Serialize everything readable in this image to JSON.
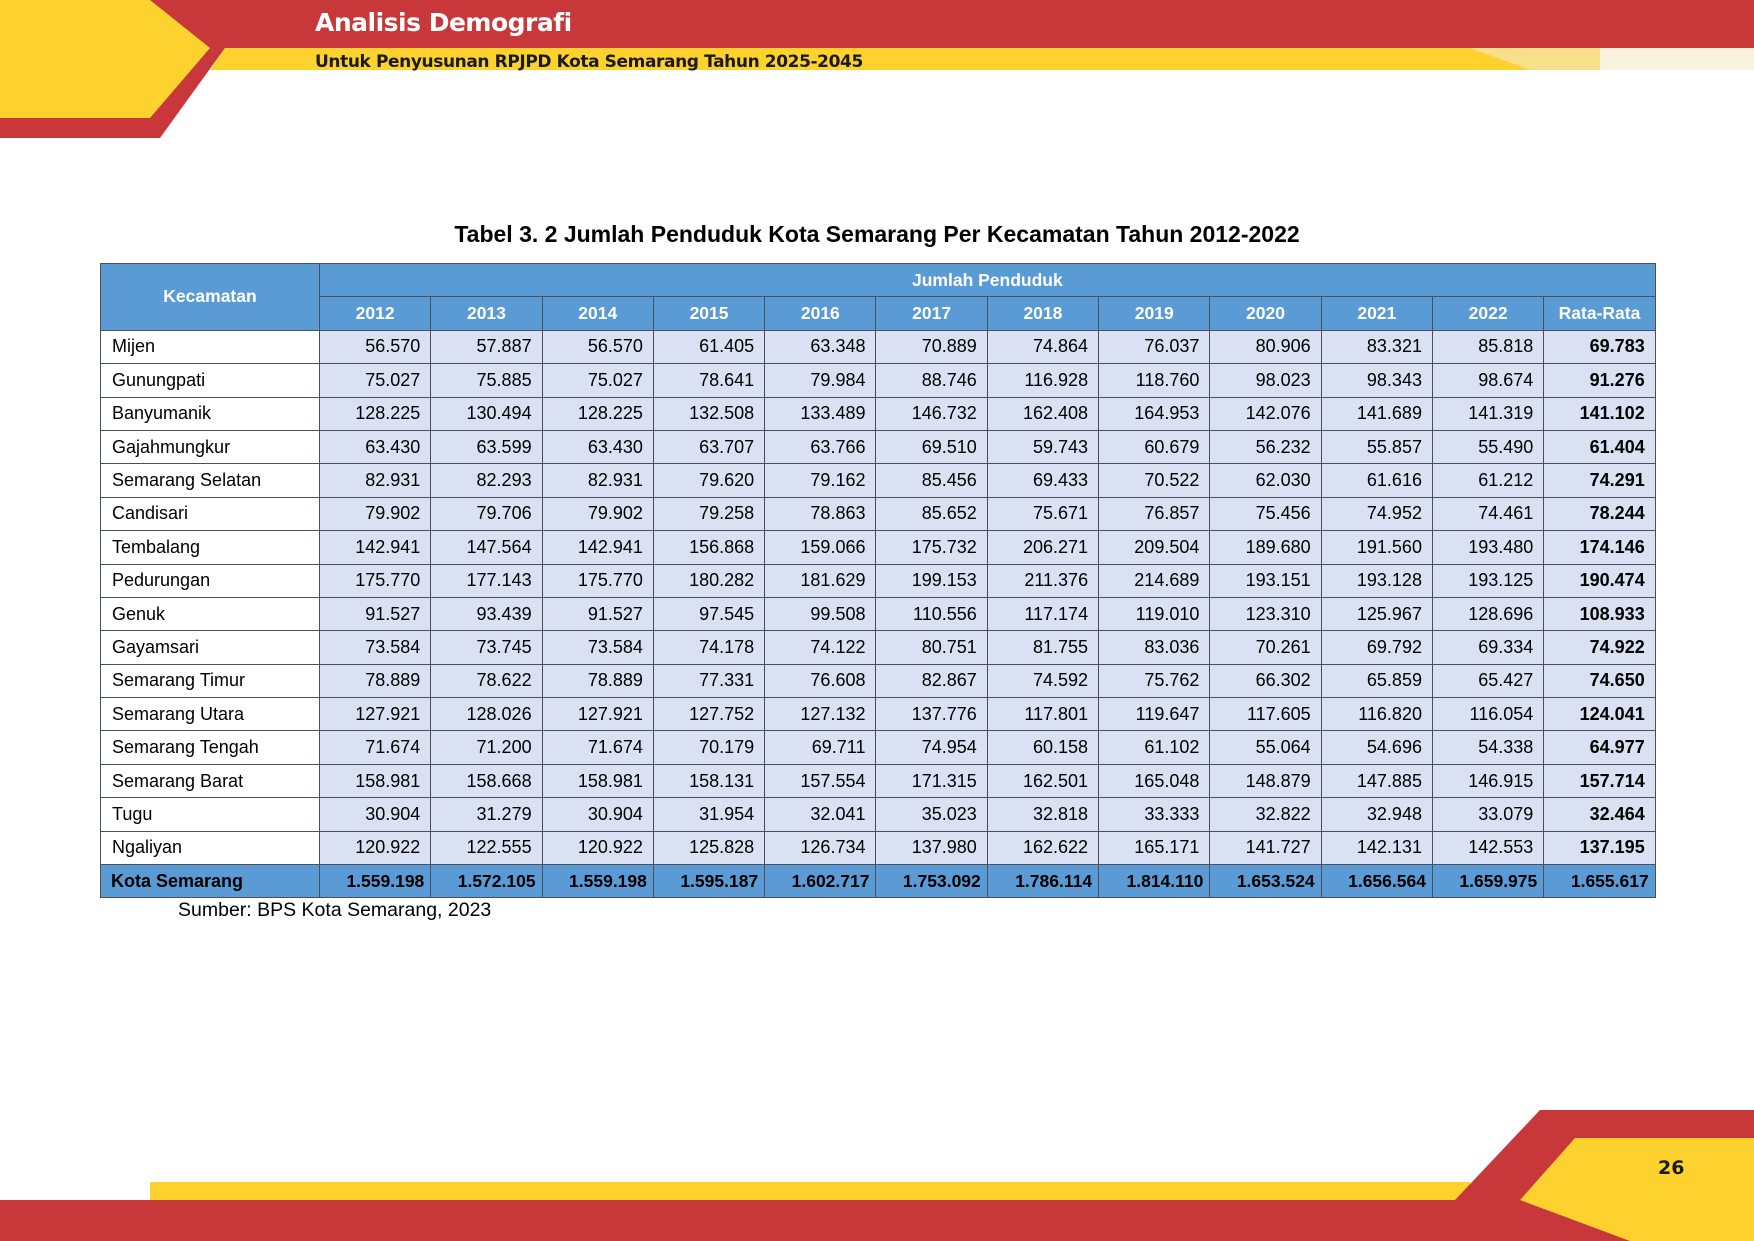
{
  "header": {
    "title": "Analisis Demografi",
    "subtitle": "Untuk Penyusunan RPJPD Kota Semarang Tahun 2025-2045"
  },
  "colors": {
    "banner_red": "#c8383a",
    "banner_yellow": "#fdd22e",
    "table_header_blue": "#5b9bd5",
    "table_cell_blue": "#d9e1f2"
  },
  "table": {
    "caption": "Tabel 3. 2 Jumlah Penduduk Kota Semarang Per Kecamatan Tahun 2012-2022",
    "col_district": "Kecamatan",
    "col_group": "Jumlah Penduduk",
    "years": [
      "2012",
      "2013",
      "2014",
      "2015",
      "2016",
      "2017",
      "2018",
      "2019",
      "2020",
      "2021",
      "2022"
    ],
    "col_average": "Rata-Rata",
    "rows": [
      {
        "name": "Mijen",
        "values": [
          "56.570",
          "57.887",
          "56.570",
          "61.405",
          "63.348",
          "70.889",
          "74.864",
          "76.037",
          "80.906",
          "83.321",
          "85.818"
        ],
        "average": "69.783"
      },
      {
        "name": "Gunungpati",
        "values": [
          "75.027",
          "75.885",
          "75.027",
          "78.641",
          "79.984",
          "88.746",
          "116.928",
          "118.760",
          "98.023",
          "98.343",
          "98.674"
        ],
        "average": "91.276"
      },
      {
        "name": "Banyumanik",
        "values": [
          "128.225",
          "130.494",
          "128.225",
          "132.508",
          "133.489",
          "146.732",
          "162.408",
          "164.953",
          "142.076",
          "141.689",
          "141.319"
        ],
        "average": "141.102"
      },
      {
        "name": "Gajahmungkur",
        "values": [
          "63.430",
          "63.599",
          "63.430",
          "63.707",
          "63.766",
          "69.510",
          "59.743",
          "60.679",
          "56.232",
          "55.857",
          "55.490"
        ],
        "average": "61.404"
      },
      {
        "name": "Semarang Selatan",
        "values": [
          "82.931",
          "82.293",
          "82.931",
          "79.620",
          "79.162",
          "85.456",
          "69.433",
          "70.522",
          "62.030",
          "61.616",
          "61.212"
        ],
        "average": "74.291"
      },
      {
        "name": "Candisari",
        "values": [
          "79.902",
          "79.706",
          "79.902",
          "79.258",
          "78.863",
          "85.652",
          "75.671",
          "76.857",
          "75.456",
          "74.952",
          "74.461"
        ],
        "average": "78.244"
      },
      {
        "name": "Tembalang",
        "values": [
          "142.941",
          "147.564",
          "142.941",
          "156.868",
          "159.066",
          "175.732",
          "206.271",
          "209.504",
          "189.680",
          "191.560",
          "193.480"
        ],
        "average": "174.146"
      },
      {
        "name": "Pedurungan",
        "values": [
          "175.770",
          "177.143",
          "175.770",
          "180.282",
          "181.629",
          "199.153",
          "211.376",
          "214.689",
          "193.151",
          "193.128",
          "193.125"
        ],
        "average": "190.474"
      },
      {
        "name": "Genuk",
        "values": [
          "91.527",
          "93.439",
          "91.527",
          "97.545",
          "99.508",
          "110.556",
          "117.174",
          "119.010",
          "123.310",
          "125.967",
          "128.696"
        ],
        "average": "108.933"
      },
      {
        "name": "Gayamsari",
        "values": [
          "73.584",
          "73.745",
          "73.584",
          "74.178",
          "74.122",
          "80.751",
          "81.755",
          "83.036",
          "70.261",
          "69.792",
          "69.334"
        ],
        "average": "74.922"
      },
      {
        "name": "Semarang Timur",
        "values": [
          "78.889",
          "78.622",
          "78.889",
          "77.331",
          "76.608",
          "82.867",
          "74.592",
          "75.762",
          "66.302",
          "65.859",
          "65.427"
        ],
        "average": "74.650"
      },
      {
        "name": "Semarang Utara",
        "values": [
          "127.921",
          "128.026",
          "127.921",
          "127.752",
          "127.132",
          "137.776",
          "117.801",
          "119.647",
          "117.605",
          "116.820",
          "116.054"
        ],
        "average": "124.041"
      },
      {
        "name": "Semarang Tengah",
        "values": [
          "71.674",
          "71.200",
          "71.674",
          "70.179",
          "69.711",
          "74.954",
          "60.158",
          "61.102",
          "55.064",
          "54.696",
          "54.338"
        ],
        "average": "64.977"
      },
      {
        "name": "Semarang Barat",
        "values": [
          "158.981",
          "158.668",
          "158.981",
          "158.131",
          "157.554",
          "171.315",
          "162.501",
          "165.048",
          "148.879",
          "147.885",
          "146.915"
        ],
        "average": "157.714"
      },
      {
        "name": "Tugu",
        "values": [
          "30.904",
          "31.279",
          "30.904",
          "31.954",
          "32.041",
          "35.023",
          "32.818",
          "33.333",
          "32.822",
          "32.948",
          "33.079"
        ],
        "average": "32.464"
      },
      {
        "name": "Ngaliyan",
        "values": [
          "120.922",
          "122.555",
          "120.922",
          "125.828",
          "126.734",
          "137.980",
          "162.622",
          "165.171",
          "141.727",
          "142.131",
          "142.553"
        ],
        "average": "137.195"
      }
    ],
    "total": {
      "name": "Kota Semarang",
      "values": [
        "1.559.198",
        "1.572.105",
        "1.559.198",
        "1.595.187",
        "1.602.717",
        "1.753.092",
        "1.786.114",
        "1.814.110",
        "1.653.524",
        "1.656.564",
        "1.659.975"
      ],
      "average": "1.655.617"
    }
  },
  "source": "Sumber: BPS Kota Semarang, 2023",
  "page_number": "26"
}
